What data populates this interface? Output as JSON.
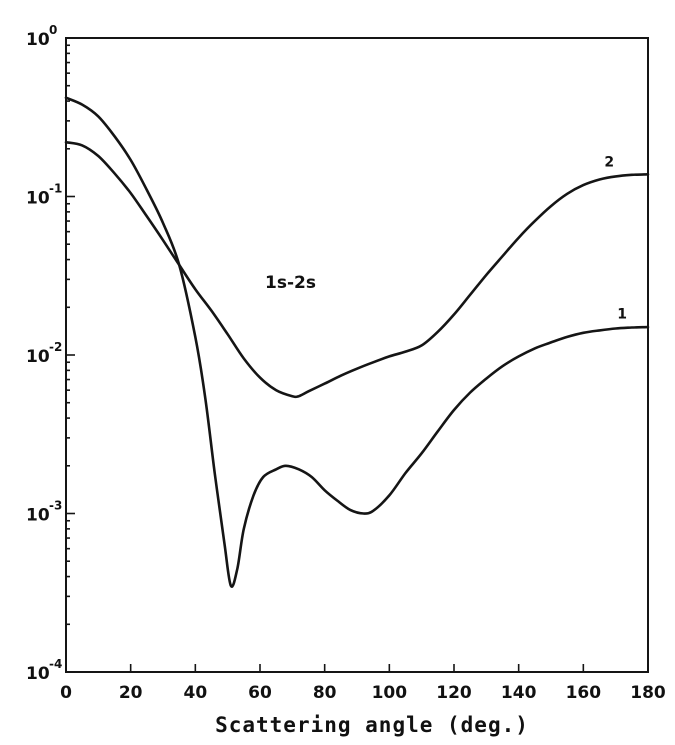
{
  "chart_data": {
    "type": "line",
    "title": "",
    "xlabel": "Scattering angle (deg.)",
    "ylabel": "",
    "xlim": [
      0,
      180
    ],
    "ylim": [
      0.0001,
      1
    ],
    "yscale": "log",
    "grid": false,
    "legend": "none",
    "x_ticks": [
      "0",
      "20",
      "40",
      "60",
      "80",
      "100",
      "120",
      "140",
      "160",
      "180"
    ],
    "y_ticks": [
      {
        "base": "10",
        "exp": "0",
        "value": 1
      },
      {
        "base": "10",
        "exp": "-1",
        "value": 0.1
      },
      {
        "base": "10",
        "exp": "-2",
        "value": 0.01
      },
      {
        "base": "10",
        "exp": "-3",
        "value": 0.001
      },
      {
        "base": "10",
        "exp": "-4",
        "value": 0.0001
      }
    ],
    "annotation": "1s-2s",
    "series": [
      {
        "name": "1",
        "x": [
          0,
          5,
          10,
          15,
          20,
          25,
          30,
          35,
          40,
          43,
          46,
          49,
          51,
          53,
          55,
          58,
          61,
          65,
          68,
          72,
          76,
          80,
          84,
          88,
          92,
          95,
          100,
          105,
          110,
          115,
          120,
          125,
          130,
          135,
          140,
          145,
          150,
          155,
          160,
          165,
          170,
          175,
          180
        ],
        "y": [
          0.42,
          0.38,
          0.32,
          0.24,
          0.17,
          0.11,
          0.068,
          0.037,
          0.013,
          0.0055,
          0.0018,
          0.00065,
          0.00035,
          0.00045,
          0.0008,
          0.0013,
          0.0017,
          0.0019,
          0.002,
          0.0019,
          0.0017,
          0.0014,
          0.0012,
          0.00105,
          0.001,
          0.00104,
          0.0013,
          0.0018,
          0.0024,
          0.0033,
          0.0045,
          0.0058,
          0.0071,
          0.0085,
          0.0098,
          0.011,
          0.012,
          0.013,
          0.0138,
          0.0143,
          0.0147,
          0.0149,
          0.015
        ],
        "label_at": [
          172,
          0.017
        ]
      },
      {
        "name": "2",
        "x": [
          0,
          5,
          10,
          15,
          20,
          25,
          30,
          35,
          40,
          45,
          50,
          55,
          60,
          65,
          70,
          72,
          75,
          80,
          85,
          90,
          95,
          100,
          105,
          110,
          115,
          120,
          125,
          130,
          135,
          140,
          145,
          150,
          155,
          160,
          165,
          170,
          175,
          180
        ],
        "y": [
          0.22,
          0.21,
          0.18,
          0.14,
          0.105,
          0.075,
          0.053,
          0.037,
          0.026,
          0.019,
          0.0135,
          0.0095,
          0.0072,
          0.006,
          0.0055,
          0.0055,
          0.0059,
          0.0066,
          0.0074,
          0.0082,
          0.009,
          0.0098,
          0.0105,
          0.0115,
          0.014,
          0.018,
          0.024,
          0.032,
          0.042,
          0.055,
          0.07,
          0.087,
          0.104,
          0.118,
          0.128,
          0.134,
          0.137,
          0.138
        ],
        "label_at": [
          168,
          0.155
        ]
      }
    ]
  }
}
